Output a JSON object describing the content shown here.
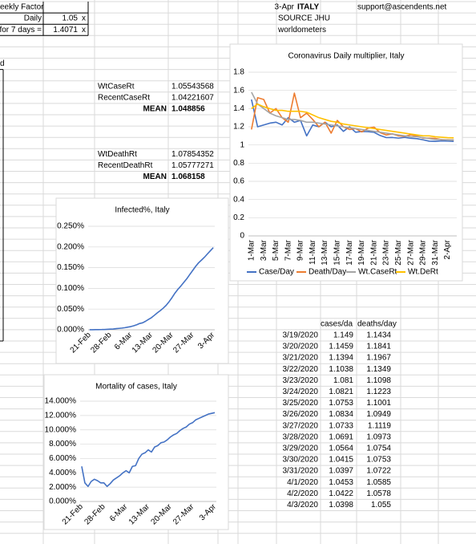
{
  "sheet": {
    "factor_label": "eekly Factor",
    "daily_label": "Daily",
    "daily_value": "1.05",
    "daily_unit": "x",
    "week_label": "for 7 days =",
    "week_value": "1.4071",
    "week_unit": "x",
    "left_note": "d",
    "date": "3-Apr",
    "country": "ITALY",
    "email": "support@ascendents.net",
    "source": "SOURCE JHU",
    "source2": "worldometers",
    "case_rates": [
      [
        "WtCaseRt",
        "1.05543568"
      ],
      [
        "RecentCaseRt",
        "1.04221607"
      ],
      [
        "MEAN",
        "1.048856"
      ]
    ],
    "death_rates": [
      [
        "WtDeathRt",
        "1.07854352"
      ],
      [
        "RecentDeathRt",
        "1.05777271"
      ],
      [
        "MEAN",
        "1.068158"
      ]
    ],
    "table": {
      "header": [
        "cases/da",
        "deaths/day"
      ],
      "rows": [
        [
          "3/19/2020",
          "1.149",
          "1.1434"
        ],
        [
          "3/20/2020",
          "1.1459",
          "1.1841"
        ],
        [
          "3/21/2020",
          "1.1394",
          "1.1967"
        ],
        [
          "3/22/2020",
          "1.1038",
          "1.1349"
        ],
        [
          "3/23/2020",
          "1.081",
          "1.1098"
        ],
        [
          "3/24/2020",
          "1.0821",
          "1.1223"
        ],
        [
          "3/25/2020",
          "1.0753",
          "1.1001"
        ],
        [
          "3/26/2020",
          "1.0834",
          "1.0949"
        ],
        [
          "3/27/2020",
          "1.0733",
          "1.1119"
        ],
        [
          "3/28/2020",
          "1.0691",
          "1.0973"
        ],
        [
          "3/29/2020",
          "1.0564",
          "1.0754"
        ],
        [
          "3/30/2020",
          "1.0415",
          "1.0753"
        ],
        [
          "3/31/2020",
          "1.0397",
          "1.0722"
        ],
        [
          "4/1/2020",
          "1.0453",
          "1.0585"
        ],
        [
          "4/2/2020",
          "1.0422",
          "1.0578"
        ],
        [
          "4/3/2020",
          "1.0398",
          "1.055"
        ]
      ]
    }
  },
  "chart_data": [
    {
      "type": "line",
      "title": "Coronavirus Daily multiplier, Italy",
      "categories": [
        "1-Mar",
        null,
        "3-Mar",
        null,
        "5-Mar",
        null,
        "7-Mar",
        null,
        "9-Mar",
        null,
        "11-Mar",
        null,
        "13-Mar",
        null,
        "15-Mar",
        null,
        "17-Mar",
        null,
        "19-Mar",
        null,
        "21-Mar",
        null,
        "23-Mar",
        null,
        "25-Mar",
        null,
        "27-Mar",
        null,
        "29-Mar",
        null,
        "31-Mar",
        null,
        "2-Apr",
        null
      ],
      "series": [
        {
          "name": "Case/Day",
          "color": "#4472c4",
          "values": [
            1.5,
            1.2,
            1.22,
            1.24,
            1.25,
            1.22,
            1.3,
            1.25,
            1.27,
            1.1,
            1.22,
            1.2,
            1.25,
            1.2,
            1.22,
            1.15,
            1.2,
            1.14,
            1.149,
            1.1459,
            1.1394,
            1.1038,
            1.081,
            1.0821,
            1.0753,
            1.0834,
            1.0733,
            1.0691,
            1.0564,
            1.0415,
            1.0397,
            1.0453,
            1.0422,
            1.0398
          ]
        },
        {
          "name": "Death/Day",
          "color": "#ed7d31",
          "values": [
            1.17,
            1.52,
            1.5,
            1.35,
            1.4,
            1.3,
            1.25,
            1.57,
            1.3,
            1.35,
            1.28,
            1.2,
            1.25,
            1.13,
            1.27,
            1.2,
            1.17,
            1.18,
            1.1434,
            1.1841,
            1.1967,
            1.1349,
            1.1098,
            1.1223,
            1.1001,
            1.0949,
            1.1119,
            1.0973,
            1.0754,
            1.0753,
            1.0722,
            1.0585,
            1.0578,
            1.055
          ]
        },
        {
          "name": "Wt.CaseRt",
          "color": "#a5a5a5",
          "values": [
            1.58,
            1.45,
            1.4,
            1.35,
            1.32,
            1.3,
            1.28,
            1.28,
            1.27,
            1.25,
            1.25,
            1.24,
            1.23,
            1.22,
            1.21,
            1.2,
            1.19,
            1.18,
            1.17,
            1.16,
            1.15,
            1.14,
            1.13,
            1.12,
            1.11,
            1.1,
            1.09,
            1.09,
            1.08,
            1.07,
            1.06,
            1.06,
            1.055,
            1.055
          ]
        },
        {
          "name": "Wt.DeRt",
          "color": "#ffc000",
          "values": [
            1.4,
            1.45,
            1.42,
            1.4,
            1.38,
            1.38,
            1.37,
            1.37,
            1.37,
            1.36,
            1.33,
            1.3,
            1.28,
            1.26,
            1.25,
            1.23,
            1.22,
            1.21,
            1.2,
            1.19,
            1.18,
            1.17,
            1.16,
            1.15,
            1.14,
            1.13,
            1.12,
            1.11,
            1.1,
            1.1,
            1.09,
            1.085,
            1.08,
            1.078
          ]
        }
      ],
      "ylim": [
        0,
        1.8
      ],
      "yticks": [
        0,
        0.2,
        0.4,
        0.6,
        0.8,
        1,
        1.2,
        1.4,
        1.6,
        1.8
      ],
      "grid": true,
      "legend": "bottom"
    },
    {
      "type": "line",
      "title": "Infected%, Italy",
      "categories": [
        "21-Feb",
        null,
        null,
        null,
        null,
        null,
        null,
        "28-Feb",
        null,
        null,
        null,
        null,
        null,
        null,
        "6-Mar",
        null,
        null,
        null,
        null,
        null,
        null,
        "13-Mar",
        null,
        null,
        null,
        null,
        null,
        null,
        "20-Mar",
        null,
        null,
        null,
        null,
        null,
        null,
        "27-Mar",
        null,
        null,
        null,
        null,
        null,
        null,
        "3-Apr"
      ],
      "values": [
        3e-05,
        0.0001,
        0.0003,
        0.0004,
        0.0005,
        0.0007,
        0.0011,
        0.0015,
        0.0019,
        0.0028,
        0.0034,
        0.0041,
        0.0051,
        0.0064,
        0.0077,
        0.0097,
        0.0122,
        0.0152,
        0.0168,
        0.0206,
        0.025,
        0.0292,
        0.035,
        0.041,
        0.0463,
        0.0522,
        0.0591,
        0.0679,
        0.0778,
        0.0887,
        0.0979,
        0.1058,
        0.1145,
        0.1232,
        0.1334,
        0.1432,
        0.1531,
        0.1617,
        0.1684,
        0.1752,
        0.1831,
        0.1908,
        0.1984
      ],
      "color": "#4472c4",
      "ylim": [
        0,
        0.25
      ],
      "yticks": [
        {
          "value": 0,
          "label": "0.000%"
        },
        {
          "value": 0.05,
          "label": "0.050%"
        },
        {
          "value": 0.1,
          "label": "0.100%"
        },
        {
          "value": 0.15,
          "label": "0.150%"
        },
        {
          "value": 0.2,
          "label": "0.200%"
        },
        {
          "value": 0.25,
          "label": "0.250%"
        }
      ],
      "grid": true
    },
    {
      "type": "line",
      "title": "Mortality of cases, Italy",
      "categories": [
        "21-Feb",
        null,
        null,
        null,
        null,
        null,
        null,
        "28-Feb",
        null,
        null,
        null,
        null,
        null,
        null,
        "6-Mar",
        null,
        null,
        null,
        null,
        null,
        null,
        "13-Mar",
        null,
        null,
        null,
        null,
        null,
        null,
        "20-Mar",
        null,
        null,
        null,
        null,
        null,
        null,
        "27-Mar",
        null,
        null,
        null,
        null,
        null,
        null,
        "3-Apr"
      ],
      "values": [
        4.9,
        2.6,
        2.1,
        2.8,
        3.1,
        2.9,
        2.6,
        2.6,
        2.1,
        2.5,
        3.0,
        3.3,
        3.6,
        4.0,
        4.3,
        4.0,
        4.9,
        5.0,
        6.0,
        6.6,
        6.8,
        7.2,
        6.9,
        7.6,
        7.8,
        8.2,
        8.3,
        8.6,
        9.0,
        9.3,
        9.5,
        9.9,
        10.2,
        10.4,
        10.8,
        11.0,
        11.4,
        11.6,
        11.8,
        12.0,
        12.2,
        12.3,
        12.4
      ],
      "color": "#4472c4",
      "ylim": [
        0,
        14
      ],
      "yticks": [
        {
          "value": 0,
          "label": "0.000%"
        },
        {
          "value": 2,
          "label": "2.000%"
        },
        {
          "value": 4,
          "label": "4.000%"
        },
        {
          "value": 6,
          "label": "6.000%"
        },
        {
          "value": 8,
          "label": "8.000%"
        },
        {
          "value": 10,
          "label": "10.000%"
        },
        {
          "value": 12,
          "label": "12.000%"
        },
        {
          "value": 14,
          "label": "14.000%"
        }
      ],
      "grid": true
    }
  ]
}
